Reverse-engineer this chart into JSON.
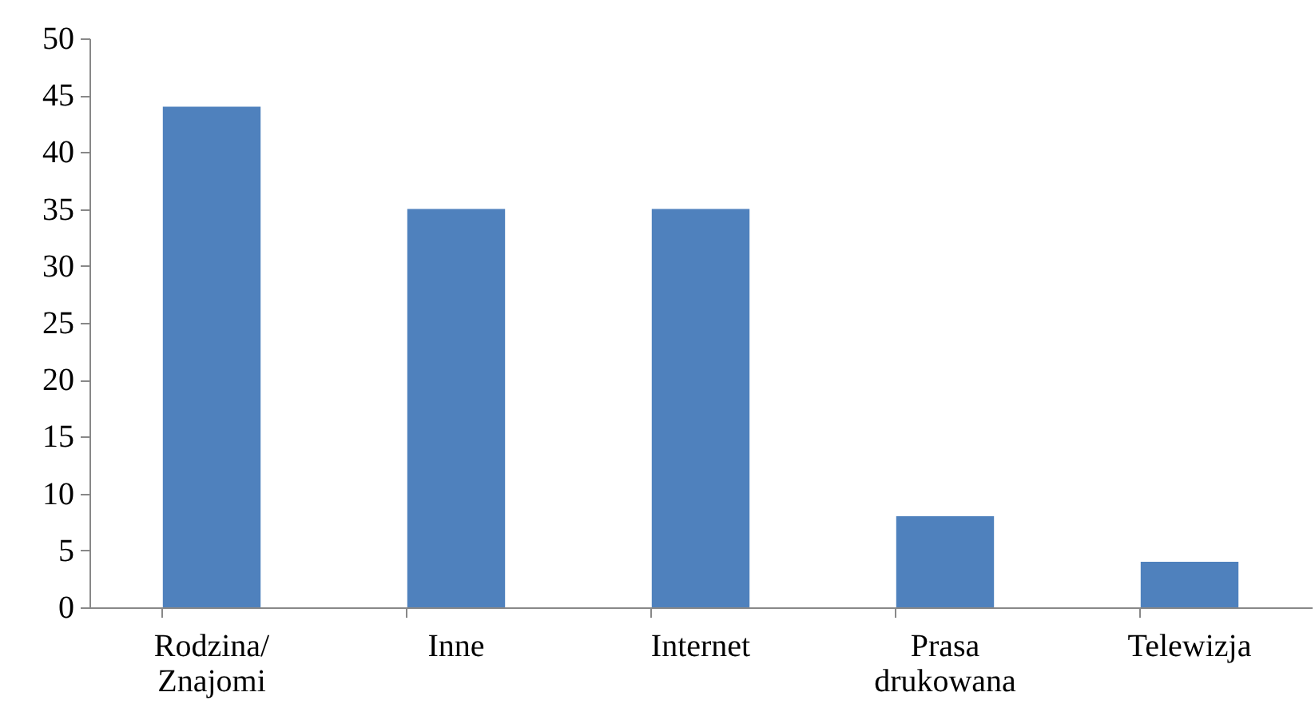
{
  "chart_data": {
    "type": "bar",
    "categories": [
      "Rodzina/ Znajomi",
      "Inne",
      "Internet",
      "Prasa drukowana",
      "Telewizja"
    ],
    "values": [
      44,
      35,
      35,
      8,
      4
    ],
    "color": "#4f81bd",
    "ylim": [
      0,
      50
    ],
    "yticks": [
      0,
      5,
      10,
      15,
      20,
      25,
      30,
      35,
      40,
      45,
      50
    ],
    "grid": false
  }
}
